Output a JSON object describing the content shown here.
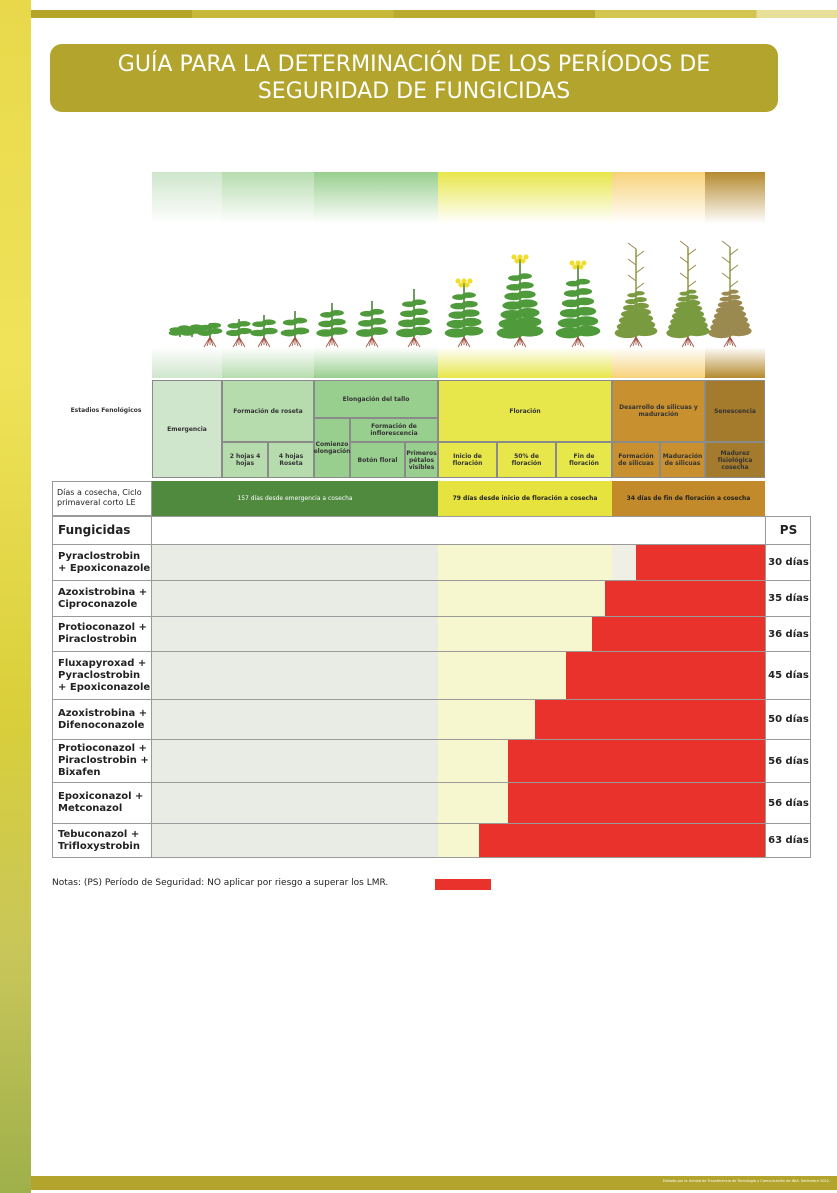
{
  "header": {
    "title": [
      "GUÍA PARA LA DETERMINACIÓN DE LOS PERÍODOS DE",
      "SEGURIDAD DE FUNGICIDAS"
    ]
  },
  "stages": {
    "label": "Estadios Fenológicos",
    "emergencia": "Emergencia",
    "roseta": {
      "title": "Formación de roseta",
      "sub": [
        "2 hojas 4 hojas",
        "4 hojas Roseta"
      ]
    },
    "elongacion": {
      "title": "Elongación del tallo",
      "comienzo": "Comienzo elongación",
      "inflorescencia": "Formación de inflorescencia",
      "sub": [
        "Botón floral",
        "Primeros pétalos visibles"
      ]
    },
    "floracion": {
      "title": "Floración",
      "sub": [
        "Inicio de floración",
        "50% de floración",
        "Fin de floración"
      ]
    },
    "silicuas": {
      "title": "Desarrollo de silicuas y maduración",
      "sub": [
        "Formación de silicuas",
        "Maduración de silicuas"
      ]
    },
    "senescencia": {
      "title": "Senescencia",
      "sub": [
        "Madurez fisiológica cosecha"
      ]
    }
  },
  "days": {
    "label": "Días a cosecha, Ciclo primaveral corto LE",
    "periods": [
      "157 días desde emergencia a cosecha",
      "79 días desde inicio de floración a cosecha",
      "34 días de fin de floración a cosecha"
    ]
  },
  "table": {
    "header": [
      "Fungicidas",
      "PS"
    ],
    "rows": [
      [
        "Pyraclostrobin + Epoxiconazole",
        "30 días"
      ],
      [
        "Azoxistrobina + Ciproconazole",
        "35 días"
      ],
      [
        "Protioconazol + Piraclostrobin",
        "36 días"
      ],
      [
        "Fluxapyroxad + Pyraclostrobin + Epoxiconazole",
        "45 días"
      ],
      [
        "Azoxistrobina + Difenoconazole",
        "50 días"
      ],
      [
        "Protioconazol + Piraclostrobin + Bixafen",
        "56 días"
      ],
      [
        "Epoxiconazol + Metconazol",
        "56 días"
      ],
      [
        "Tebuconazol + Trifloxystrobin",
        "63 días"
      ]
    ]
  },
  "notes": "Notas: (PS) Período de Seguridad: NO aplicar por riesgo a superar los LMR.",
  "footer": "Editado por la Unidad de Transferencia de Tecnología y Comunicación de INIA. Setiembre 2022."
}
